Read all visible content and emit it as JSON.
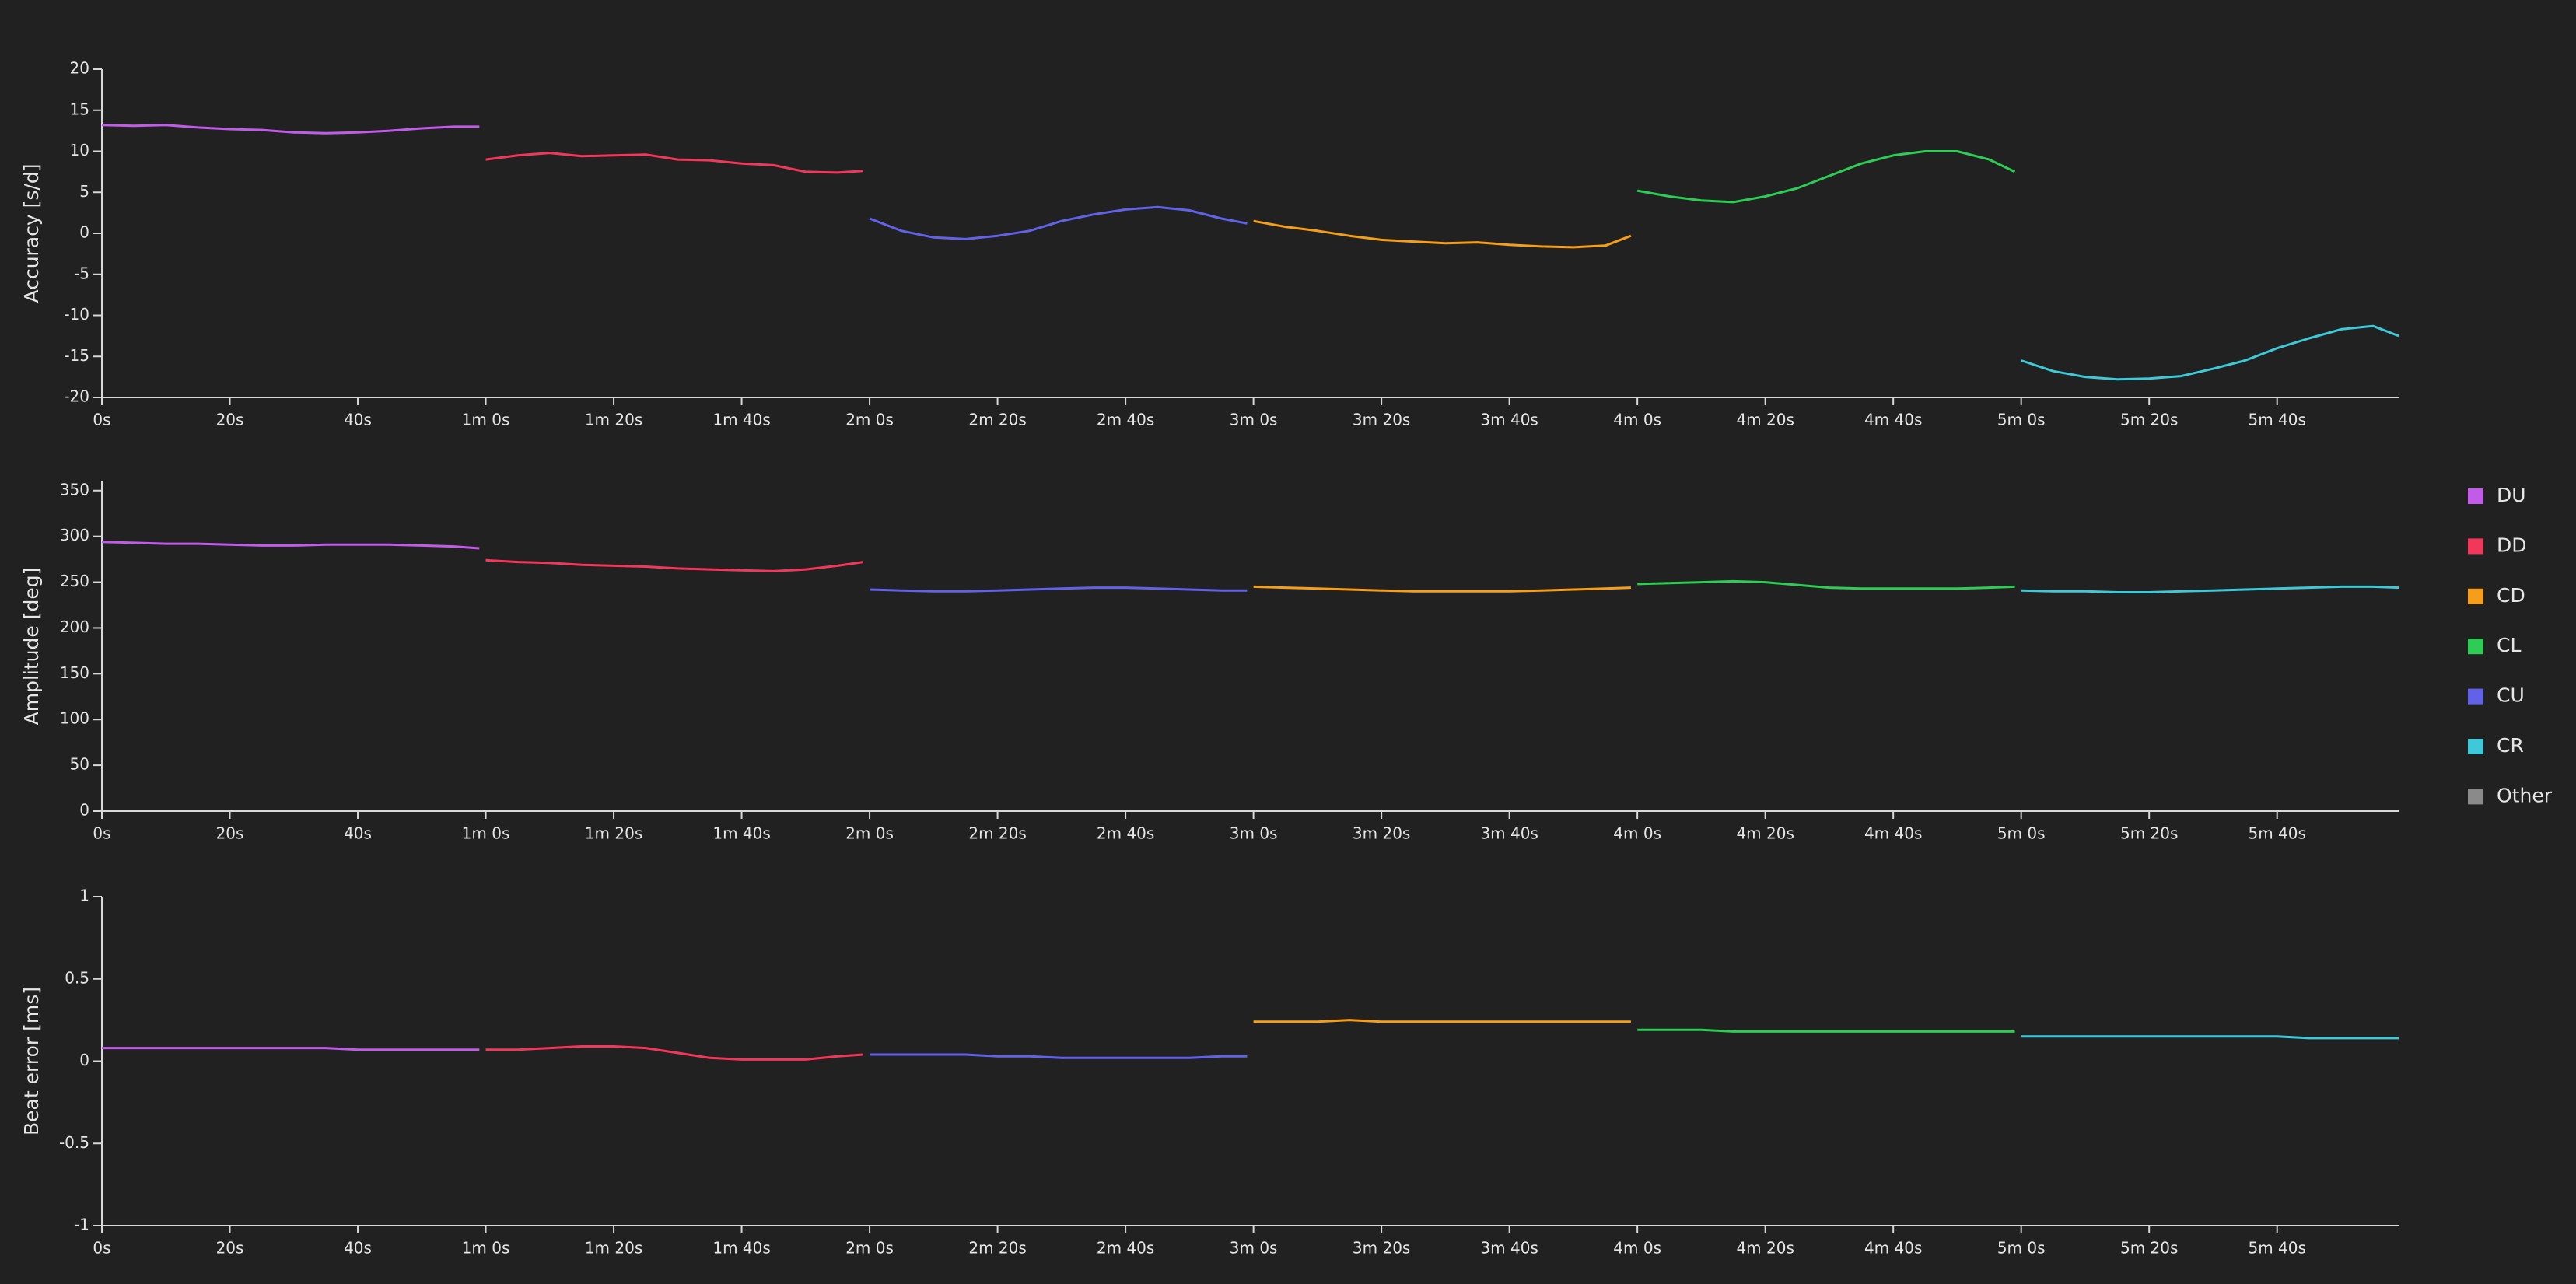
{
  "legend": [
    {
      "name": "DU",
      "color": "#c25be8"
    },
    {
      "name": "DD",
      "color": "#f2385a"
    },
    {
      "name": "CD",
      "color": "#f59e1b"
    },
    {
      "name": "CL",
      "color": "#2ecc55"
    },
    {
      "name": "CU",
      "color": "#6262e8"
    },
    {
      "name": "CR",
      "color": "#3ec8d8"
    },
    {
      "name": "Other",
      "color": "#8a8a8a"
    }
  ],
  "chart_data": [
    {
      "type": "line",
      "ylabel": "Accuracy [s/d]",
      "xlim": [
        0,
        359
      ],
      "ylim": [
        -20,
        20
      ],
      "xticks": [
        {
          "value": 0,
          "label": "0s"
        },
        {
          "value": 20,
          "label": "20s"
        },
        {
          "value": 40,
          "label": "40s"
        },
        {
          "value": 60,
          "label": "1m 0s"
        },
        {
          "value": 80,
          "label": "1m 20s"
        },
        {
          "value": 100,
          "label": "1m 40s"
        },
        {
          "value": 120,
          "label": "2m 0s"
        },
        {
          "value": 140,
          "label": "2m 20s"
        },
        {
          "value": 160,
          "label": "2m 40s"
        },
        {
          "value": 180,
          "label": "3m 0s"
        },
        {
          "value": 200,
          "label": "3m 20s"
        },
        {
          "value": 220,
          "label": "3m 40s"
        },
        {
          "value": 240,
          "label": "4m 0s"
        },
        {
          "value": 260,
          "label": "4m 20s"
        },
        {
          "value": 280,
          "label": "4m 40s"
        },
        {
          "value": 300,
          "label": "5m 0s"
        },
        {
          "value": 320,
          "label": "5m 20s"
        },
        {
          "value": 340,
          "label": "5m 40s"
        }
      ],
      "yticks": [
        -20,
        -15,
        -10,
        -5,
        0,
        5,
        10,
        15,
        20
      ],
      "series": [
        {
          "name": "DU",
          "x": [
            0,
            5,
            10,
            15,
            20,
            25,
            30,
            35,
            40,
            45,
            50,
            55,
            59
          ],
          "values": [
            13.2,
            13.1,
            13.2,
            12.9,
            12.7,
            12.6,
            12.3,
            12.2,
            12.3,
            12.5,
            12.8,
            13.0,
            13.0
          ]
        },
        {
          "name": "DD",
          "x": [
            60,
            65,
            70,
            75,
            80,
            85,
            90,
            95,
            100,
            105,
            110,
            115,
            119
          ],
          "values": [
            9.0,
            9.5,
            9.8,
            9.4,
            9.5,
            9.6,
            9.0,
            8.9,
            8.5,
            8.3,
            7.5,
            7.4,
            7.6
          ]
        },
        {
          "name": "CU",
          "x": [
            120,
            125,
            130,
            135,
            140,
            145,
            150,
            155,
            160,
            165,
            170,
            175,
            179
          ],
          "values": [
            1.8,
            0.3,
            -0.5,
            -0.7,
            -0.3,
            0.3,
            1.5,
            2.3,
            2.9,
            3.2,
            2.8,
            1.8,
            1.2
          ]
        },
        {
          "name": "CD",
          "x": [
            180,
            185,
            190,
            195,
            200,
            205,
            210,
            215,
            220,
            225,
            230,
            235,
            239
          ],
          "values": [
            1.5,
            0.8,
            0.3,
            -0.3,
            -0.8,
            -1.0,
            -1.2,
            -1.1,
            -1.4,
            -1.6,
            -1.7,
            -1.5,
            -0.3
          ]
        },
        {
          "name": "CL",
          "x": [
            240,
            245,
            250,
            255,
            260,
            265,
            270,
            275,
            280,
            285,
            290,
            295,
            299
          ],
          "values": [
            5.2,
            4.5,
            4.0,
            3.8,
            4.5,
            5.5,
            7.0,
            8.5,
            9.5,
            10.0,
            10.0,
            9.0,
            7.5
          ]
        },
        {
          "name": "CR",
          "x": [
            300,
            305,
            310,
            315,
            320,
            325,
            330,
            335,
            340,
            345,
            350,
            355,
            359
          ],
          "values": [
            -15.5,
            -16.8,
            -17.5,
            -17.8,
            -17.7,
            -17.4,
            -16.5,
            -15.5,
            -14.0,
            -12.8,
            -11.7,
            -11.3,
            -12.5
          ]
        }
      ]
    },
    {
      "type": "line",
      "ylabel": "Amplitude [deg]",
      "xlim": [
        0,
        359
      ],
      "ylim": [
        0,
        360
      ],
      "xticks": [
        {
          "value": 0,
          "label": "0s"
        },
        {
          "value": 20,
          "label": "20s"
        },
        {
          "value": 40,
          "label": "40s"
        },
        {
          "value": 60,
          "label": "1m 0s"
        },
        {
          "value": 80,
          "label": "1m 20s"
        },
        {
          "value": 100,
          "label": "1m 40s"
        },
        {
          "value": 120,
          "label": "2m 0s"
        },
        {
          "value": 140,
          "label": "2m 20s"
        },
        {
          "value": 160,
          "label": "2m 40s"
        },
        {
          "value": 180,
          "label": "3m 0s"
        },
        {
          "value": 200,
          "label": "3m 20s"
        },
        {
          "value": 220,
          "label": "3m 40s"
        },
        {
          "value": 240,
          "label": "4m 0s"
        },
        {
          "value": 260,
          "label": "4m 20s"
        },
        {
          "value": 280,
          "label": "4m 40s"
        },
        {
          "value": 300,
          "label": "5m 0s"
        },
        {
          "value": 320,
          "label": "5m 20s"
        },
        {
          "value": 340,
          "label": "5m 40s"
        }
      ],
      "yticks": [
        0,
        50,
        100,
        150,
        200,
        250,
        300,
        350
      ],
      "series": [
        {
          "name": "DU",
          "x": [
            0,
            5,
            10,
            15,
            20,
            25,
            30,
            35,
            40,
            45,
            50,
            55,
            59
          ],
          "values": [
            294,
            293,
            292,
            292,
            291,
            290,
            290,
            291,
            291,
            291,
            290,
            289,
            287
          ]
        },
        {
          "name": "DD",
          "x": [
            60,
            65,
            70,
            75,
            80,
            85,
            90,
            95,
            100,
            105,
            110,
            115,
            119
          ],
          "values": [
            274,
            272,
            271,
            269,
            268,
            267,
            265,
            264,
            263,
            262,
            264,
            268,
            272
          ]
        },
        {
          "name": "CU",
          "x": [
            120,
            125,
            130,
            135,
            140,
            145,
            150,
            155,
            160,
            165,
            170,
            175,
            179
          ],
          "values": [
            242,
            241,
            240,
            240,
            241,
            242,
            243,
            244,
            244,
            243,
            242,
            241,
            241
          ]
        },
        {
          "name": "CD",
          "x": [
            180,
            185,
            190,
            195,
            200,
            205,
            210,
            215,
            220,
            225,
            230,
            235,
            239
          ],
          "values": [
            245,
            244,
            243,
            242,
            241,
            240,
            240,
            240,
            240,
            241,
            242,
            243,
            244
          ]
        },
        {
          "name": "CL",
          "x": [
            240,
            245,
            250,
            255,
            260,
            265,
            270,
            275,
            280,
            285,
            290,
            295,
            299
          ],
          "values": [
            248,
            249,
            250,
            251,
            250,
            247,
            244,
            243,
            243,
            243,
            243,
            244,
            245
          ]
        },
        {
          "name": "CR",
          "x": [
            300,
            305,
            310,
            315,
            320,
            325,
            330,
            335,
            340,
            345,
            350,
            355,
            359
          ],
          "values": [
            241,
            240,
            240,
            239,
            239,
            240,
            241,
            242,
            243,
            244,
            245,
            245,
            244
          ]
        }
      ]
    },
    {
      "type": "line",
      "ylabel": "Beat error [ms]",
      "xlim": [
        0,
        359
      ],
      "ylim": [
        -1,
        1
      ],
      "xticks": [
        {
          "value": 0,
          "label": "0s"
        },
        {
          "value": 20,
          "label": "20s"
        },
        {
          "value": 40,
          "label": "40s"
        },
        {
          "value": 60,
          "label": "1m 0s"
        },
        {
          "value": 80,
          "label": "1m 20s"
        },
        {
          "value": 100,
          "label": "1m 40s"
        },
        {
          "value": 120,
          "label": "2m 0s"
        },
        {
          "value": 140,
          "label": "2m 20s"
        },
        {
          "value": 160,
          "label": "2m 40s"
        },
        {
          "value": 180,
          "label": "3m 0s"
        },
        {
          "value": 200,
          "label": "3m 20s"
        },
        {
          "value": 220,
          "label": "3m 40s"
        },
        {
          "value": 240,
          "label": "4m 0s"
        },
        {
          "value": 260,
          "label": "4m 20s"
        },
        {
          "value": 280,
          "label": "4m 40s"
        },
        {
          "value": 300,
          "label": "5m 0s"
        },
        {
          "value": 320,
          "label": "5m 20s"
        },
        {
          "value": 340,
          "label": "5m 40s"
        }
      ],
      "yticks": [
        -1,
        -0.5,
        0,
        0.5,
        1
      ],
      "series": [
        {
          "name": "DU",
          "x": [
            0,
            5,
            10,
            15,
            20,
            25,
            30,
            35,
            40,
            45,
            50,
            55,
            59
          ],
          "values": [
            0.08,
            0.08,
            0.08,
            0.08,
            0.08,
            0.08,
            0.08,
            0.08,
            0.07,
            0.07,
            0.07,
            0.07,
            0.07
          ]
        },
        {
          "name": "DD",
          "x": [
            60,
            65,
            70,
            75,
            80,
            85,
            90,
            95,
            100,
            105,
            110,
            115,
            119
          ],
          "values": [
            0.07,
            0.07,
            0.08,
            0.09,
            0.09,
            0.08,
            0.05,
            0.02,
            0.01,
            0.01,
            0.01,
            0.03,
            0.04
          ]
        },
        {
          "name": "CU",
          "x": [
            120,
            125,
            130,
            135,
            140,
            145,
            150,
            155,
            160,
            165,
            170,
            175,
            179
          ],
          "values": [
            0.04,
            0.04,
            0.04,
            0.04,
            0.03,
            0.03,
            0.02,
            0.02,
            0.02,
            0.02,
            0.02,
            0.03,
            0.03
          ]
        },
        {
          "name": "CD",
          "x": [
            180,
            185,
            190,
            195,
            200,
            205,
            210,
            215,
            220,
            225,
            230,
            235,
            239
          ],
          "values": [
            0.24,
            0.24,
            0.24,
            0.25,
            0.24,
            0.24,
            0.24,
            0.24,
            0.24,
            0.24,
            0.24,
            0.24,
            0.24
          ]
        },
        {
          "name": "CL",
          "x": [
            240,
            245,
            250,
            255,
            260,
            265,
            270,
            275,
            280,
            285,
            290,
            295,
            299
          ],
          "values": [
            0.19,
            0.19,
            0.19,
            0.18,
            0.18,
            0.18,
            0.18,
            0.18,
            0.18,
            0.18,
            0.18,
            0.18,
            0.18
          ]
        },
        {
          "name": "CR",
          "x": [
            300,
            305,
            310,
            315,
            320,
            325,
            330,
            335,
            340,
            345,
            350,
            355,
            359
          ],
          "values": [
            0.15,
            0.15,
            0.15,
            0.15,
            0.15,
            0.15,
            0.15,
            0.15,
            0.15,
            0.14,
            0.14,
            0.14,
            0.14
          ]
        }
      ]
    }
  ]
}
